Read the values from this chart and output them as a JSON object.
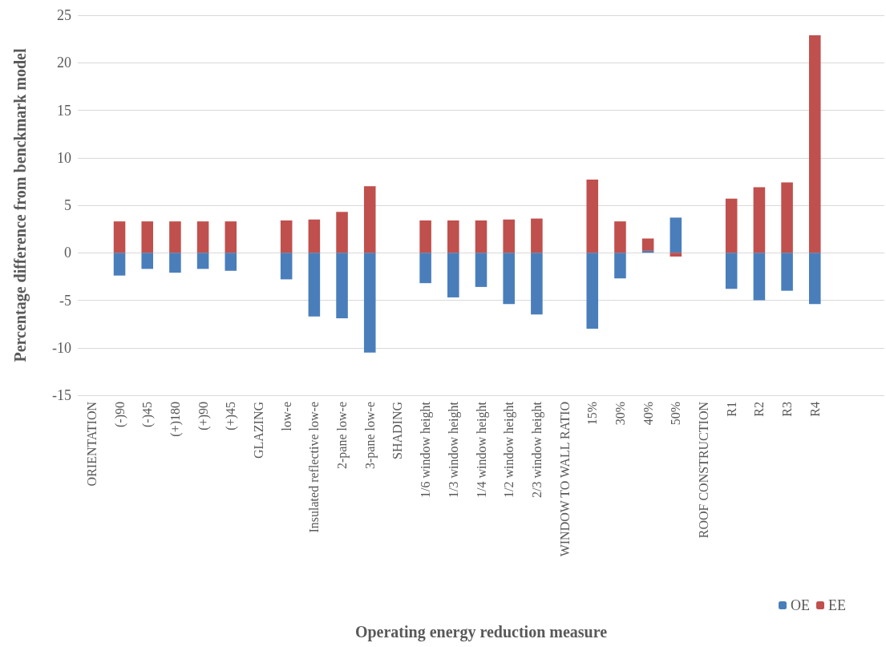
{
  "chart_data": {
    "type": "bar",
    "stacked": true,
    "xlabel": "Operating energy reduction measure",
    "ylabel": "Percentage difference from benckmark model",
    "categories": [
      "ORIENTATION",
      "(-)90",
      "(-)45",
      "(+)180",
      "(+)90",
      "(+)45",
      "GLAZING",
      "low-e",
      "Insulated reflective low-e",
      "2-pane low-e",
      "3-pane low-e",
      "SHADING",
      "1/6 window height",
      "1/3 window height",
      "1/4 window height",
      "1/2 window height",
      "2/3 window height",
      "WINDOW TO WALL RATIO",
      "15%",
      "30%",
      "40%",
      "50%",
      "ROOF CONSTRUCTION",
      "R1",
      "R2",
      "R3",
      "R4",
      null,
      null
    ],
    "series": [
      {
        "name": "OE",
        "color": "#4a7ebb",
        "values": [
          null,
          -2.4,
          -1.7,
          -2.1,
          -1.7,
          -1.9,
          null,
          -2.8,
          -6.7,
          -6.9,
          -10.5,
          null,
          -3.2,
          -4.7,
          -3.6,
          -5.4,
          -6.5,
          null,
          -8.0,
          -2.7,
          0.2,
          3.7,
          null,
          -3.8,
          -5.0,
          -4.0,
          -5.4,
          null,
          null
        ]
      },
      {
        "name": "EE",
        "color": "#c0504d",
        "values": [
          null,
          3.3,
          3.3,
          3.3,
          3.3,
          3.3,
          null,
          3.4,
          3.5,
          4.3,
          7.0,
          null,
          3.4,
          3.4,
          3.4,
          3.5,
          3.6,
          null,
          7.7,
          3.3,
          1.3,
          -0.4,
          null,
          5.7,
          6.9,
          7.4,
          22.9,
          null,
          null
        ]
      }
    ],
    "ylim": [
      -15,
      25
    ],
    "yticks": [
      -15,
      -10,
      -5,
      0,
      5,
      10,
      15,
      20,
      25
    ],
    "grid": "y",
    "legend": "bottom right"
  }
}
